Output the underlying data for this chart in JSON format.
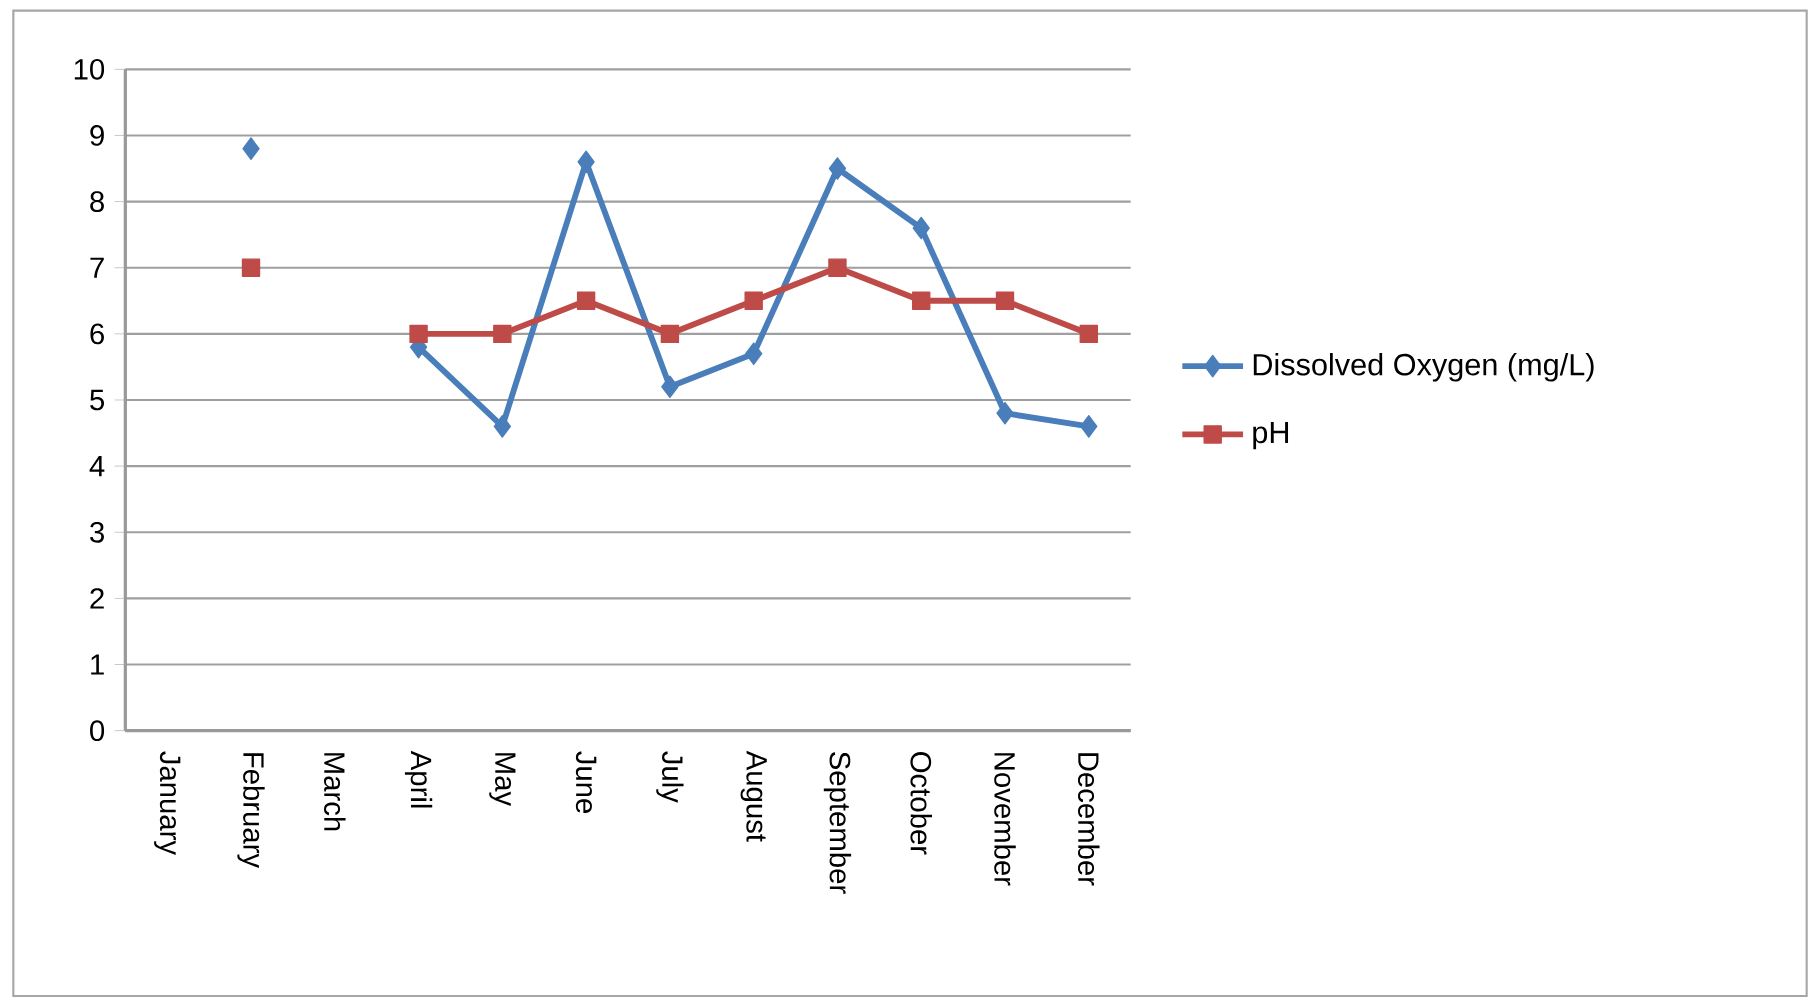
{
  "chart_data": {
    "type": "line",
    "categories": [
      "January",
      "February",
      "March",
      "April",
      "May",
      "June",
      "July",
      "August",
      "September",
      "October",
      "November",
      "December"
    ],
    "series": [
      {
        "name": "Dissolved Oxygen (mg/L)",
        "color": "#4a7ebb",
        "marker": "diamond",
        "values": [
          null,
          8.8,
          null,
          5.8,
          4.6,
          8.6,
          5.2,
          5.7,
          8.5,
          7.6,
          4.8,
          4.6
        ]
      },
      {
        "name": "pH",
        "color": "#be4b48",
        "marker": "square",
        "values": [
          null,
          7,
          null,
          6,
          6,
          6.5,
          6,
          6.5,
          7,
          6.5,
          6.5,
          6
        ]
      }
    ],
    "ylim": [
      0,
      10
    ],
    "yticks": [
      0,
      1,
      2,
      3,
      4,
      5,
      6,
      7,
      8,
      9,
      10
    ],
    "grid": "y",
    "legend": "right"
  }
}
